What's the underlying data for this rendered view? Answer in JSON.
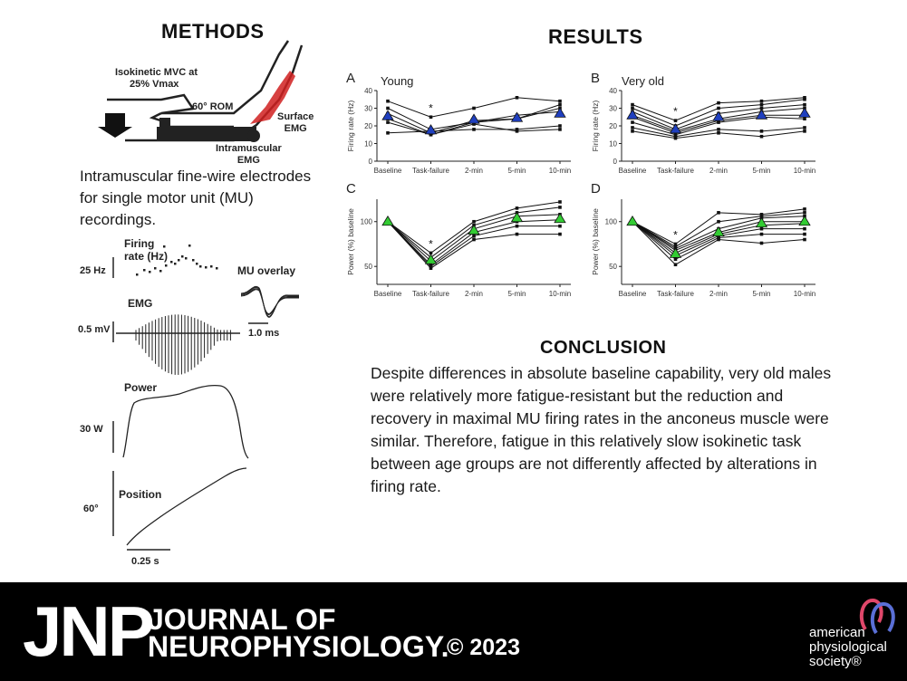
{
  "methods": {
    "title": "METHODS",
    "arm_labels": {
      "mvc": "Isokinetic MVC at",
      "vmax": "25% Vmax",
      "rom": "60° ROM",
      "surface_1": "Surface",
      "surface_2": "EMG",
      "intra_1": "Intramuscular",
      "intra_2": "EMG"
    },
    "description": "Intramuscular fine-wire electrodes for single motor unit (MU) recordings.",
    "firing_label_1": "Firing",
    "firing_label_2": "rate (Hz)",
    "firing_scale": "25 Hz",
    "mu_overlay": "MU overlay",
    "emg_label": "EMG",
    "emg_scale": "0.5 mV",
    "mu_time_scale": "1.0 ms",
    "power_label": "Power",
    "power_scale": "30 W",
    "position_label": "Position",
    "position_scale": "60°",
    "time_scale": "0.25 s"
  },
  "results": {
    "title": "RESULTS",
    "panels": [
      {
        "letter": "A",
        "group": "Young",
        "ylabel": "Firing rate (Hz)"
      },
      {
        "letter": "B",
        "group": "Very old",
        "ylabel": "Firing rate (Hz)"
      },
      {
        "letter": "C",
        "group": "",
        "ylabel": "Power (%) baseline"
      },
      {
        "letter": "D",
        "group": "",
        "ylabel": "Power (%) baseline"
      }
    ],
    "significance_marker": "*"
  },
  "conclusion": {
    "title": "CONCLUSION",
    "text": "Despite differences in absolute baseline capability, very old males were relatively more fatigue-resistant but the reduction and recovery in maximal MU firing rates in the anconeus muscle were similar. Therefore, fatigue in this relatively slow isokinetic task between age groups are not differently affected by alterations in firing rate."
  },
  "footer": {
    "jnp": "JNP",
    "journal_line1": "JOURNAL OF",
    "journal_line2": "NEUROPHYSIOLOGY.",
    "copyright": "© 2023",
    "society_line1": "american",
    "society_line2": "physiological",
    "society_line3": "society®"
  },
  "colors": {
    "young_mean": "#1f3fbf",
    "old_mean": "#1f3fbf",
    "power_mean": "#33cc33",
    "emg_red": "#d02020",
    "footer_bg": "#000000"
  },
  "chart_data": [
    {
      "type": "line",
      "panel": "A",
      "title": "Young",
      "categories": [
        "Baseline",
        "Task-failure",
        "2-min",
        "5-min",
        "10-min"
      ],
      "ylabel": "Firing rate (Hz)",
      "ylim": [
        0,
        40
      ],
      "yticks": [
        0,
        10,
        20,
        30,
        40
      ],
      "series": [
        {
          "values": [
            34,
            25,
            30,
            36,
            34
          ]
        },
        {
          "values": [
            30,
            18,
            22,
            24,
            32
          ]
        },
        {
          "values": [
            27,
            16,
            23,
            24,
            30
          ]
        },
        {
          "values": [
            24,
            15,
            22,
            26,
            28
          ]
        },
        {
          "values": [
            22,
            15,
            21,
            17,
            18
          ]
        },
        {
          "values": [
            16,
            17,
            18,
            18,
            20
          ]
        },
        {
          "name": "mean",
          "values": [
            25.5,
            17.5,
            23.5,
            24.5,
            27
          ]
        }
      ],
      "annotations": [
        {
          "category": "Task-failure",
          "text": "*"
        }
      ]
    },
    {
      "type": "line",
      "panel": "B",
      "title": "Very old",
      "categories": [
        "Baseline",
        "Task-failure",
        "2-min",
        "5-min",
        "10-min"
      ],
      "ylabel": "Firing rate (Hz)",
      "ylim": [
        0,
        40
      ],
      "yticks": [
        0,
        10,
        20,
        30,
        40
      ],
      "series": [
        {
          "values": [
            32,
            23,
            33,
            34,
            36
          ]
        },
        {
          "values": [
            30,
            20,
            30,
            32,
            35
          ]
        },
        {
          "values": [
            28,
            18,
            27,
            30,
            32
          ]
        },
        {
          "values": [
            26,
            17,
            24,
            28,
            30
          ]
        },
        {
          "values": [
            25,
            16,
            23,
            26,
            26
          ]
        },
        {
          "values": [
            22,
            15,
            22,
            25,
            24
          ]
        },
        {
          "values": [
            19,
            14,
            18,
            17,
            19
          ]
        },
        {
          "values": [
            17,
            13,
            16,
            14,
            17
          ]
        },
        {
          "name": "mean",
          "values": [
            26,
            18,
            25,
            26,
            27
          ]
        }
      ],
      "annotations": [
        {
          "category": "Task-failure",
          "text": "*"
        }
      ]
    },
    {
      "type": "line",
      "panel": "C",
      "title": "",
      "categories": [
        "Baseline",
        "Task-failure",
        "2-min",
        "5-min",
        "10-min"
      ],
      "ylabel": "Power (%) baseline",
      "ylim": [
        30,
        125
      ],
      "yticks": [
        50,
        100
      ],
      "series": [
        {
          "values": [
            100,
            65,
            100,
            115,
            122
          ]
        },
        {
          "values": [
            100,
            60,
            96,
            110,
            116
          ]
        },
        {
          "values": [
            100,
            56,
            92,
            106,
            108
          ]
        },
        {
          "values": [
            100,
            52,
            88,
            100,
            102
          ]
        },
        {
          "values": [
            100,
            50,
            84,
            95,
            95
          ]
        },
        {
          "values": [
            100,
            48,
            80,
            86,
            86
          ]
        },
        {
          "name": "mean",
          "values": [
            100,
            57,
            90,
            104,
            103
          ]
        }
      ],
      "annotations": [
        {
          "category": "Task-failure",
          "text": "*"
        }
      ]
    },
    {
      "type": "line",
      "panel": "D",
      "title": "",
      "categories": [
        "Baseline",
        "Task-failure",
        "2-min",
        "5-min",
        "10-min"
      ],
      "ylabel": "Power (%) baseline",
      "ylim": [
        30,
        125
      ],
      "yticks": [
        50,
        100
      ],
      "series": [
        {
          "values": [
            100,
            75,
            110,
            108,
            114
          ]
        },
        {
          "values": [
            100,
            72,
            100,
            106,
            110
          ]
        },
        {
          "values": [
            100,
            70,
            92,
            104,
            106
          ]
        },
        {
          "values": [
            100,
            68,
            88,
            100,
            100
          ]
        },
        {
          "values": [
            100,
            65,
            86,
            96,
            98
          ]
        },
        {
          "values": [
            100,
            62,
            84,
            92,
            92
          ]
        },
        {
          "values": [
            100,
            58,
            82,
            86,
            86
          ]
        },
        {
          "values": [
            100,
            52,
            80,
            76,
            80
          ]
        },
        {
          "name": "mean",
          "values": [
            100,
            64,
            88,
            98,
            100
          ]
        }
      ],
      "annotations": [
        {
          "category": "Task-failure",
          "text": "*"
        }
      ]
    }
  ]
}
